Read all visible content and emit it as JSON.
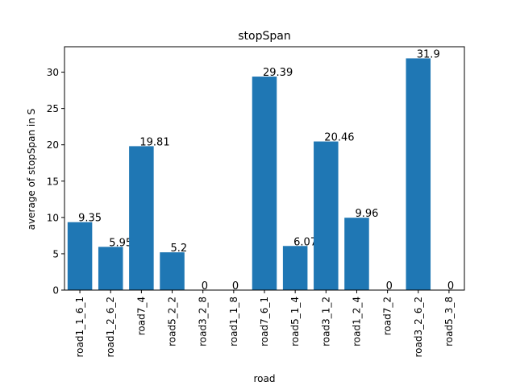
{
  "chart_data": {
    "type": "bar",
    "title": "stopSpan",
    "xlabel": "road",
    "ylabel": "average of stopSpan in S",
    "ylim": [
      0,
      33.5
    ],
    "yticks": [
      0,
      5,
      10,
      15,
      20,
      25,
      30
    ],
    "categories": [
      "road1_1_6_1",
      "road1_2_6_2",
      "road7_4",
      "road5_2_2",
      "road3_2_8",
      "road1_1_8",
      "road7_6_1",
      "road5_1_4",
      "road3_1_2",
      "road1_2_4",
      "road7_2",
      "road3_2_6_2",
      "road5_3_8"
    ],
    "values": [
      9.35,
      5.95,
      19.81,
      5.2,
      0,
      0,
      29.39,
      6.07,
      20.46,
      9.96,
      0,
      31.9,
      0
    ],
    "value_labels": [
      "9.35",
      "5.95",
      "19.81",
      "5.2",
      "0",
      "0",
      "29.39",
      "6.07",
      "20.46",
      "9.96",
      "0",
      "31.9",
      "0"
    ],
    "bar_color": "#1f77b4",
    "grid": false,
    "legend": "none"
  }
}
